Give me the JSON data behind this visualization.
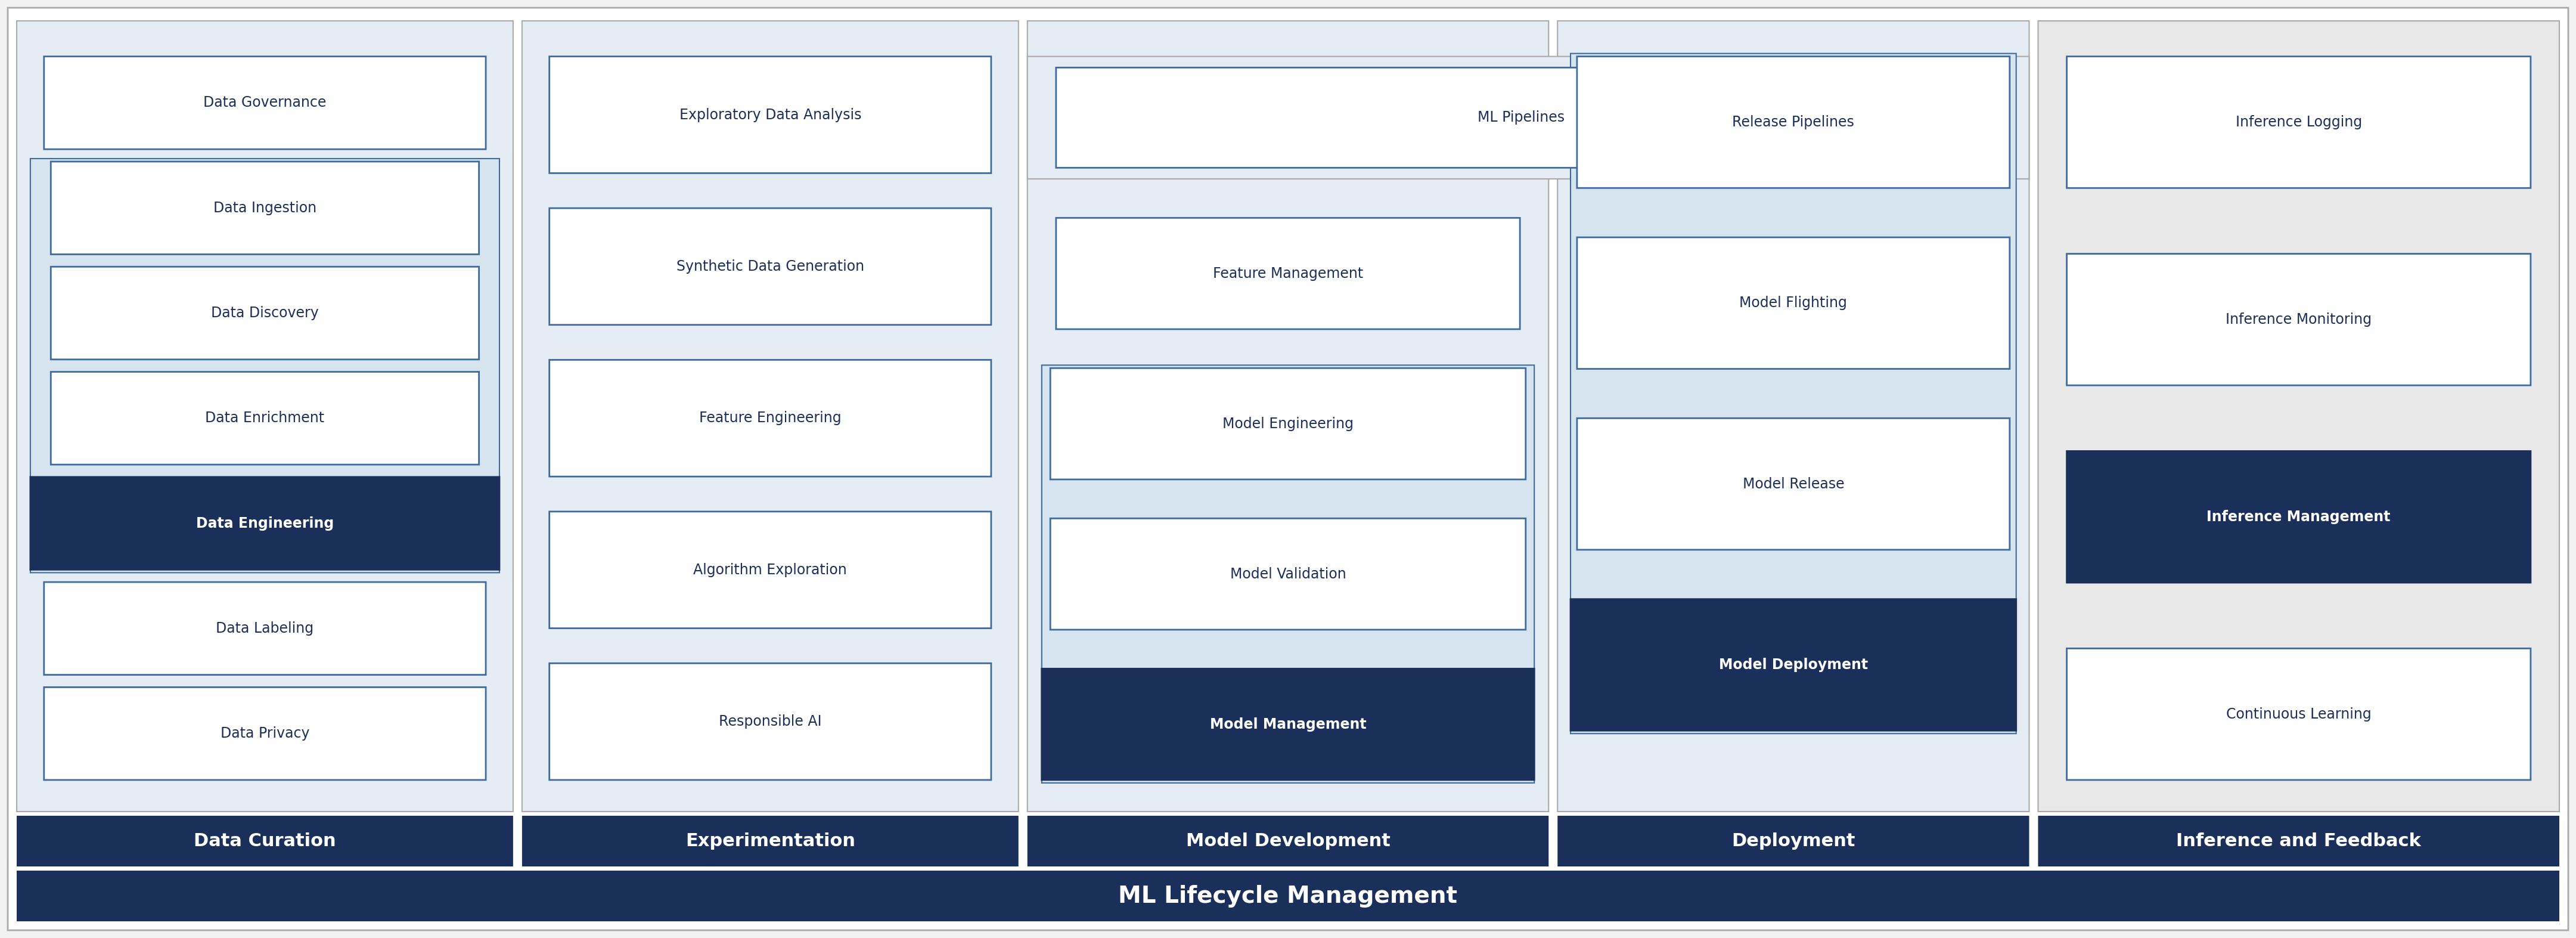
{
  "fig_width": 43.22,
  "fig_height": 15.73,
  "bg_color": "#f2f2f2",
  "dark_blue": "#1a2f5a",
  "medium_blue": "#3d5a8a",
  "light_blue_fill": "#d6e4f0",
  "col_bg": "#e6ecf3",
  "inference_bg": "#e8e8e8",
  "white": "#ffffff",
  "box_border": "#3d6b9e",
  "title_bar_color": "#1a2f5a",
  "bottom_bar_color": "#1a2f5a",
  "columns": [
    {
      "id": "data_curation",
      "title": "Data Curation",
      "bg": "#e6ecf3",
      "items": [
        {
          "label": "Data Governance",
          "dark": false,
          "group": false
        },
        {
          "label": "Data Ingestion",
          "dark": false,
          "group": true
        },
        {
          "label": "Data Discovery",
          "dark": false,
          "group": true
        },
        {
          "label": "Data Enrichment",
          "dark": false,
          "group": true
        },
        {
          "label": "Data Engineering",
          "dark": true,
          "group": true
        },
        {
          "label": "Data Labeling",
          "dark": false,
          "group": false
        },
        {
          "label": "Data Privacy",
          "dark": false,
          "group": false
        }
      ],
      "group_indices": [
        1,
        2,
        3,
        4
      ],
      "has_wide_top": false
    },
    {
      "id": "experimentation",
      "title": "Experimentation",
      "bg": "#e6ecf3",
      "items": [
        {
          "label": "Exploratory Data Analysis",
          "dark": false,
          "group": false
        },
        {
          "label": "Synthetic Data Generation",
          "dark": false,
          "group": false
        },
        {
          "label": "Feature Engineering",
          "dark": false,
          "group": false
        },
        {
          "label": "Algorithm Exploration",
          "dark": false,
          "group": false
        },
        {
          "label": "Responsible AI",
          "dark": false,
          "group": false
        }
      ],
      "group_indices": [],
      "has_wide_top": false
    },
    {
      "id": "model_development",
      "title": "Model Development",
      "bg": "#e6ecf3",
      "items": [
        {
          "label": "ML Pipelines",
          "dark": false,
          "group": false,
          "wide_top": true
        },
        {
          "label": "Feature Management",
          "dark": false,
          "group": false
        },
        {
          "label": "Model Engineering",
          "dark": false,
          "group": true
        },
        {
          "label": "Model Validation",
          "dark": false,
          "group": true
        },
        {
          "label": "Model Management",
          "dark": true,
          "group": true
        }
      ],
      "group_indices": [
        2,
        3,
        4
      ],
      "has_wide_top": true
    },
    {
      "id": "deployment",
      "title": "Deployment",
      "bg": "#e6ecf3",
      "items": [
        {
          "label": "Release Pipelines",
          "dark": false,
          "group": true
        },
        {
          "label": "Model Flighting",
          "dark": false,
          "group": true
        },
        {
          "label": "Model Release",
          "dark": false,
          "group": true
        },
        {
          "label": "Model Deployment",
          "dark": true,
          "group": true
        }
      ],
      "group_indices": [
        0,
        1,
        2,
        3
      ],
      "has_wide_top": false
    },
    {
      "id": "inference",
      "title": "Inference and Feedback",
      "bg": "#e8e8e8",
      "items": [
        {
          "label": "Inference Logging",
          "dark": false,
          "group": false
        },
        {
          "label": "Inference Monitoring",
          "dark": false,
          "group": false
        },
        {
          "label": "Inference Management",
          "dark": true,
          "group": false
        },
        {
          "label": "Continuous Learning",
          "dark": false,
          "group": false
        }
      ],
      "group_indices": [],
      "has_wide_top": false
    }
  ],
  "bottom_label": "ML Lifecycle Management"
}
